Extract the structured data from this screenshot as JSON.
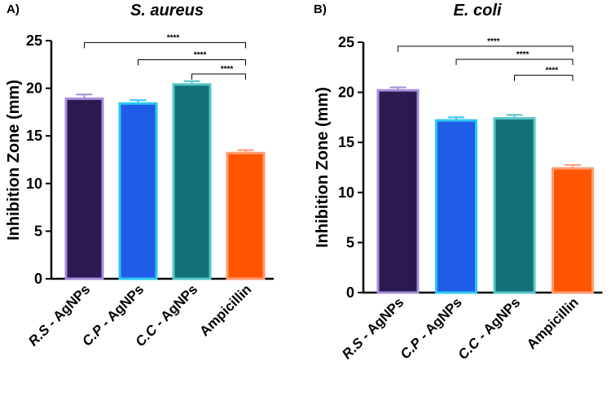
{
  "chart_data": [
    {
      "type": "bar",
      "panel_label": "A)",
      "title": "S. aureus",
      "ylabel": "Inhibition Zone (mm)",
      "xlabel": "",
      "ylim": [
        0,
        25
      ],
      "yticks": [
        "0",
        "5",
        "10",
        "15",
        "20",
        "25"
      ],
      "categories": [
        {
          "prefix": "R.S",
          "suffix": " - AgNPs"
        },
        {
          "prefix": "C.P",
          "suffix": " - AgNPs"
        },
        {
          "prefix": "C.C",
          "suffix": " - AgNPs"
        },
        {
          "prefix": "",
          "suffix": "Ampicillin"
        }
      ],
      "values": [
        18.9,
        18.4,
        20.4,
        13.2
      ],
      "errors": [
        0.45,
        0.35,
        0.35,
        0.3
      ],
      "significance": [
        {
          "from": 0,
          "to": 3,
          "y": 24.8,
          "label": "****"
        },
        {
          "from": 1,
          "to": 3,
          "y": 23.0,
          "label": "****"
        },
        {
          "from": 2,
          "to": 3,
          "y": 21.5,
          "label": "****"
        }
      ],
      "colors": {
        "fills": [
          "#2b1a52",
          "#1f5ce8",
          "#137078",
          "#ff5500"
        ],
        "edges": [
          "#a58ed8",
          "#2dc8f0",
          "#55c5c8",
          "#ff9a70"
        ]
      }
    },
    {
      "type": "bar",
      "panel_label": "B)",
      "title": "E. coli",
      "ylabel": "Inhibition Zone (mm)",
      "xlabel": "",
      "ylim": [
        0,
        25
      ],
      "yticks": [
        "0",
        "5",
        "10",
        "15",
        "20",
        "25"
      ],
      "categories": [
        {
          "prefix": "R.S",
          "suffix": " - AgNPs"
        },
        {
          "prefix": "C.P",
          "suffix": " - AgNPs"
        },
        {
          "prefix": "C.C",
          "suffix": " - AgNPs"
        },
        {
          "prefix": "",
          "suffix": "Ampicillin"
        }
      ],
      "values": [
        20.2,
        17.2,
        17.4,
        12.4
      ],
      "errors": [
        0.3,
        0.3,
        0.35,
        0.35
      ],
      "significance": [
        {
          "from": 0,
          "to": 3,
          "y": 24.6,
          "label": "****"
        },
        {
          "from": 1,
          "to": 3,
          "y": 23.3,
          "label": "****"
        },
        {
          "from": 2,
          "to": 3,
          "y": 21.7,
          "label": "****"
        }
      ],
      "colors": {
        "fills": [
          "#2b1a52",
          "#1f5ce8",
          "#137078",
          "#ff5500"
        ],
        "edges": [
          "#a58ed8",
          "#2dc8f0",
          "#55c5c8",
          "#ff9a70"
        ]
      }
    }
  ]
}
